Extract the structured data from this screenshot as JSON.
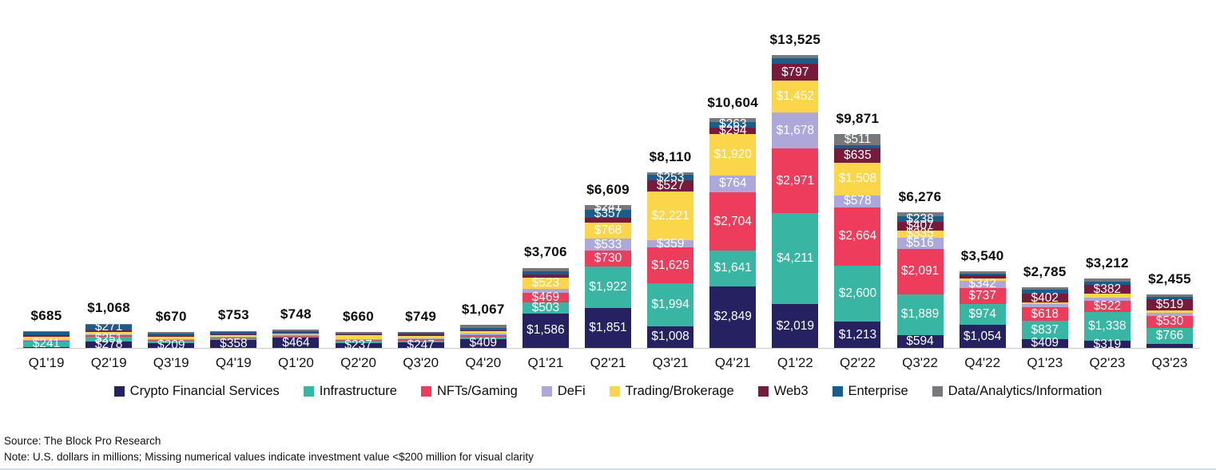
{
  "chart_data": {
    "type": "bar",
    "stacked": true,
    "unit": "U.S. dollars in millions",
    "legend_position": "bottom",
    "grid": false,
    "ylim": [
      0,
      13525
    ],
    "categories": [
      "Q1'19",
      "Q2'19",
      "Q3'19",
      "Q4'19",
      "Q1'20",
      "Q2'20",
      "Q3'20",
      "Q4'20",
      "Q1'21",
      "Q2'21",
      "Q3'21",
      "Q4'21",
      "Q1'22",
      "Q2'22",
      "Q3'22",
      "Q4'22",
      "Q1'23",
      "Q2'23",
      "Q3'23"
    ],
    "totals": [
      "$685",
      "$1,068",
      "$670",
      "$753",
      "$748",
      "$660",
      "$749",
      "$1,067",
      "$3,706",
      "$6,609",
      "$8,110",
      "$10,604",
      "$13,525",
      "$9,871",
      "$6,276",
      "$3,540",
      "$2,785",
      "$3,212",
      "$2,455"
    ],
    "series": [
      {
        "name": "Crypto Financial Services",
        "color": "#262262",
        "values": [
          20,
          278,
          209,
          358,
          464,
          237,
          247,
          409,
          1586,
          1851,
          1008,
          2849,
          2019,
          1213,
          594,
          1054,
          409,
          319,
          170
        ],
        "labels": [
          null,
          "$278",
          "$209",
          "$358",
          "$464",
          "$237",
          "$247",
          "$409",
          "$1,586",
          "$1,851",
          "$1,008",
          "$2,849",
          "$2,019",
          "$1,213",
          "$594",
          "$1,054",
          "$409",
          "$319",
          null
        ]
      },
      {
        "name": "Infrastructure",
        "color": "#38B6A3",
        "values": [
          241,
          251,
          120,
          80,
          60,
          90,
          90,
          120,
          503,
          1922,
          1994,
          1641,
          4211,
          2600,
          1889,
          974,
          837,
          1338,
          766
        ],
        "labels": [
          "$241",
          "$251",
          null,
          null,
          null,
          null,
          null,
          null,
          "$503",
          "$1,922",
          "$1,994",
          "$1,641",
          "$4,211",
          "$2,600",
          "$1,889",
          "$974",
          "$837",
          "$1,338",
          "$766"
        ]
      },
      {
        "name": "NFTs/Gaming",
        "color": "#EE3D5C",
        "values": [
          30,
          60,
          40,
          50,
          40,
          40,
          60,
          60,
          469,
          730,
          1626,
          2704,
          2971,
          2664,
          2091,
          737,
          618,
          522,
          530
        ],
        "labels": [
          null,
          null,
          null,
          null,
          null,
          null,
          null,
          null,
          "$469",
          "$730",
          "$1,626",
          "$2,704",
          "$2,971",
          "$2,664",
          "$2,091",
          "$737",
          "$618",
          "$522",
          "$530"
        ]
      },
      {
        "name": "DeFi",
        "color": "#AEA7DA",
        "values": [
          15,
          20,
          15,
          15,
          10,
          15,
          50,
          60,
          180,
          533,
          359,
          764,
          1678,
          578,
          516,
          342,
          150,
          160,
          170
        ],
        "labels": [
          null,
          null,
          null,
          null,
          null,
          null,
          null,
          null,
          null,
          "$533",
          "$359",
          "$764",
          "$1,678",
          "$578",
          "$516",
          "$342",
          null,
          null,
          null
        ]
      },
      {
        "name": "Trading/Brokerage",
        "color": "#FBD64A",
        "values": [
          150,
          120,
          80,
          60,
          50,
          150,
          120,
          120,
          523,
          768,
          2221,
          1920,
          1452,
          1508,
          335,
          90,
          80,
          180,
          80
        ],
        "labels": [
          null,
          null,
          null,
          null,
          null,
          null,
          null,
          null,
          "$523",
          "$768",
          "$2,221",
          "$1,920",
          "$1,452",
          "$1,508",
          "$335",
          null,
          null,
          null,
          null
        ]
      },
      {
        "name": "Web3",
        "color": "#771B3D",
        "values": [
          20,
          50,
          26,
          40,
          24,
          38,
          52,
          48,
          120,
          207,
          527,
          294,
          797,
          635,
          407,
          150,
          402,
          382,
          519
        ],
        "labels": [
          null,
          null,
          null,
          null,
          null,
          null,
          null,
          null,
          null,
          null,
          "$527",
          "$294",
          "$797",
          "$635",
          "$407",
          null,
          "$402",
          "$382",
          "$519"
        ]
      },
      {
        "name": "Enterprise",
        "color": "#1A5C8C",
        "values": [
          150,
          271,
          120,
          100,
          70,
          60,
          80,
          100,
          175,
          357,
          253,
          263,
          250,
          162,
          238,
          80,
          200,
          160,
          120
        ],
        "labels": [
          null,
          "$271",
          null,
          null,
          null,
          null,
          null,
          null,
          null,
          "$357",
          "$253",
          "$263",
          null,
          null,
          "$238",
          null,
          null,
          null,
          null
        ]
      },
      {
        "name": "Data/Analytics/Information",
        "color": "#77787B",
        "values": [
          59,
          18,
          60,
          50,
          30,
          30,
          50,
          150,
          150,
          241,
          122,
          169,
          147,
          511,
          206,
          113,
          89,
          151,
          100
        ],
        "labels": [
          null,
          null,
          null,
          null,
          null,
          null,
          null,
          null,
          null,
          "$241",
          null,
          null,
          null,
          "$511",
          null,
          null,
          null,
          null,
          null
        ]
      }
    ]
  },
  "footer": {
    "source": "Source: The Block Pro Research",
    "note": "Note: U.S. dollars in millions; Missing numerical values indicate investment value <$200 million for visual clarity"
  }
}
